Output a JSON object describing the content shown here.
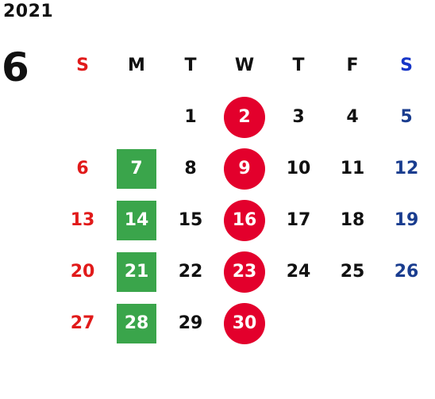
{
  "calendar": {
    "year": "2021",
    "month": "6",
    "weekdays": [
      "S",
      "M",
      "T",
      "W",
      "T",
      "F",
      "S"
    ],
    "weeks": [
      [
        "",
        "",
        "1",
        "2",
        "3",
        "4",
        "5"
      ],
      [
        "6",
        "7",
        "8",
        "9",
        "10",
        "11",
        "12"
      ],
      [
        "13",
        "14",
        "15",
        "16",
        "17",
        "18",
        "19"
      ],
      [
        "20",
        "21",
        "22",
        "23",
        "24",
        "25",
        "26"
      ],
      [
        "27",
        "28",
        "29",
        "30",
        "",
        "",
        ""
      ]
    ],
    "colors": {
      "sunday": "#e11a1a",
      "saturday": "#1a3d8f",
      "green_mark": "#3aa54b",
      "red_mark": "#e3002c"
    },
    "green_marked_days": [
      "7",
      "14",
      "21",
      "28"
    ],
    "red_marked_days": [
      "2",
      "9",
      "16",
      "23",
      "30"
    ]
  }
}
